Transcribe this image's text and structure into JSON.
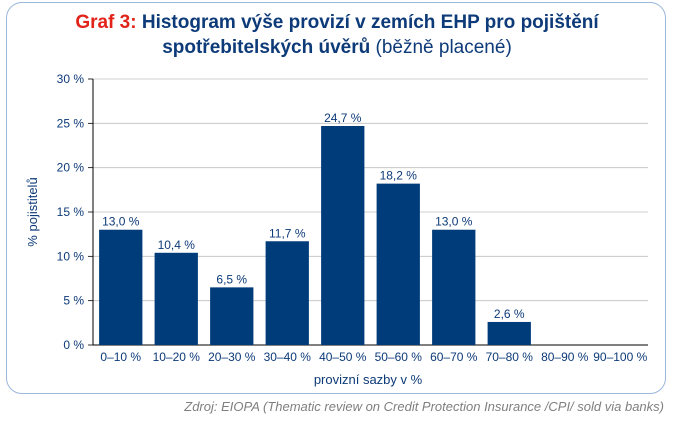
{
  "header": {
    "prefix": "Graf 3:",
    "line1_rest": "Histogram výše provizí v zemích EHP pro pojištění",
    "line2_main": "spotřebitelských úvěrů",
    "line2_note": "(běžně placené)"
  },
  "source": "Zdroj: EIOPA (Thematic review on Credit Protection Insurance /CPI/ sold via banks)",
  "colors": {
    "bar": "#003b7a",
    "title": "#0d3a78",
    "prefix": "#e2231a",
    "axis_text": "#0d3a78",
    "grid": "#bfbfbf",
    "border": "#9bb7d9"
  },
  "chart_data": {
    "type": "bar",
    "title": "Histogram výše provizí v zemích EHP pro pojištění spotřebitelských úvěrů (běžně placené)",
    "xlabel": "provizní sazby v %",
    "ylabel": "% pojistitelů",
    "categories": [
      "0–10 %",
      "10–20 %",
      "20–30 %",
      "30–40 %",
      "40–50 %",
      "50–60 %",
      "60–70 %",
      "70–80 %",
      "80–90 %",
      "90–100 %"
    ],
    "values": [
      13.0,
      10.4,
      6.5,
      11.7,
      24.7,
      18.2,
      13.0,
      2.6,
      0,
      0
    ],
    "data_labels": [
      "13,0 %",
      "10,4 %",
      "6,5 %",
      "11,7 %",
      "24,7 %",
      "18,2 %",
      "13,0 %",
      "2,6 %",
      "",
      ""
    ],
    "ylim": [
      0,
      30
    ],
    "yticks": [
      0,
      5,
      10,
      15,
      20,
      25,
      30
    ],
    "ytick_labels": [
      "0 %",
      "5 %",
      "10 %",
      "15 %",
      "20 %",
      "25 %",
      "30 %"
    ],
    "grid": true,
    "legend": "none"
  }
}
